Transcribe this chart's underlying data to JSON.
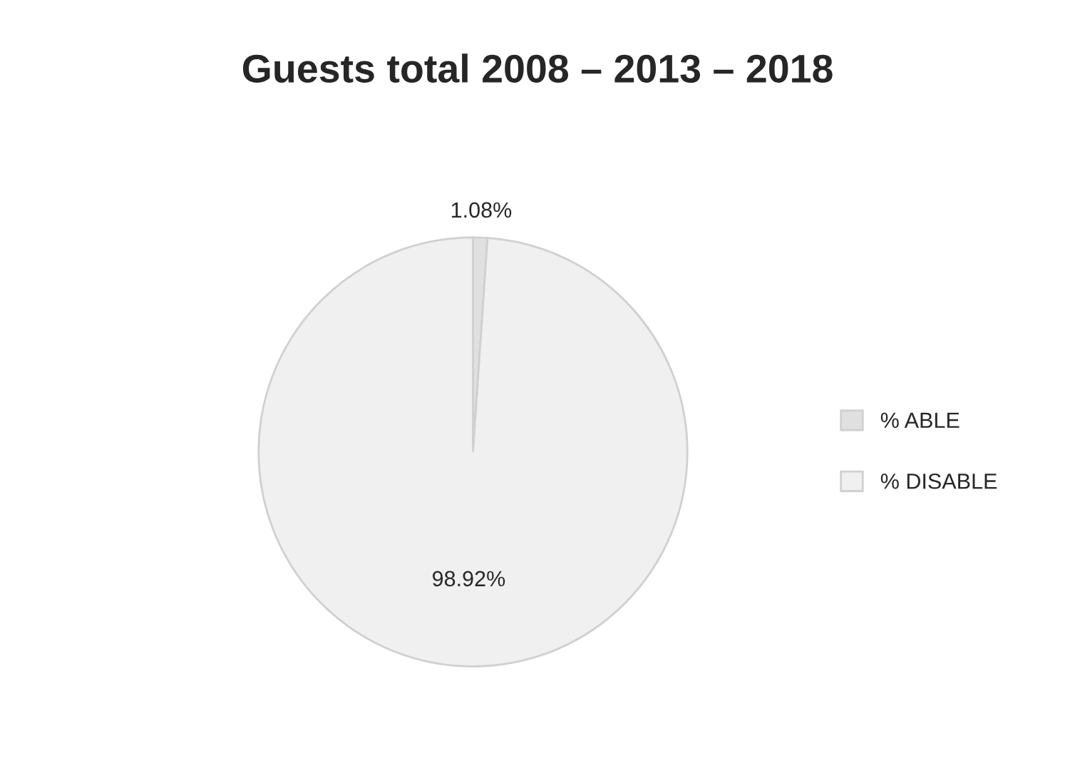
{
  "chart_data": {
    "type": "pie",
    "title": "Guests total 2008 – 2013 – 2018",
    "categories": [
      "% ABLE",
      "% DISABLE"
    ],
    "values": [
      1.08,
      98.92
    ],
    "colors": [
      "#e0e0e0",
      "#f0f0f0"
    ],
    "value_labels": [
      "1.08%",
      "98.92%"
    ],
    "legend": "right"
  }
}
